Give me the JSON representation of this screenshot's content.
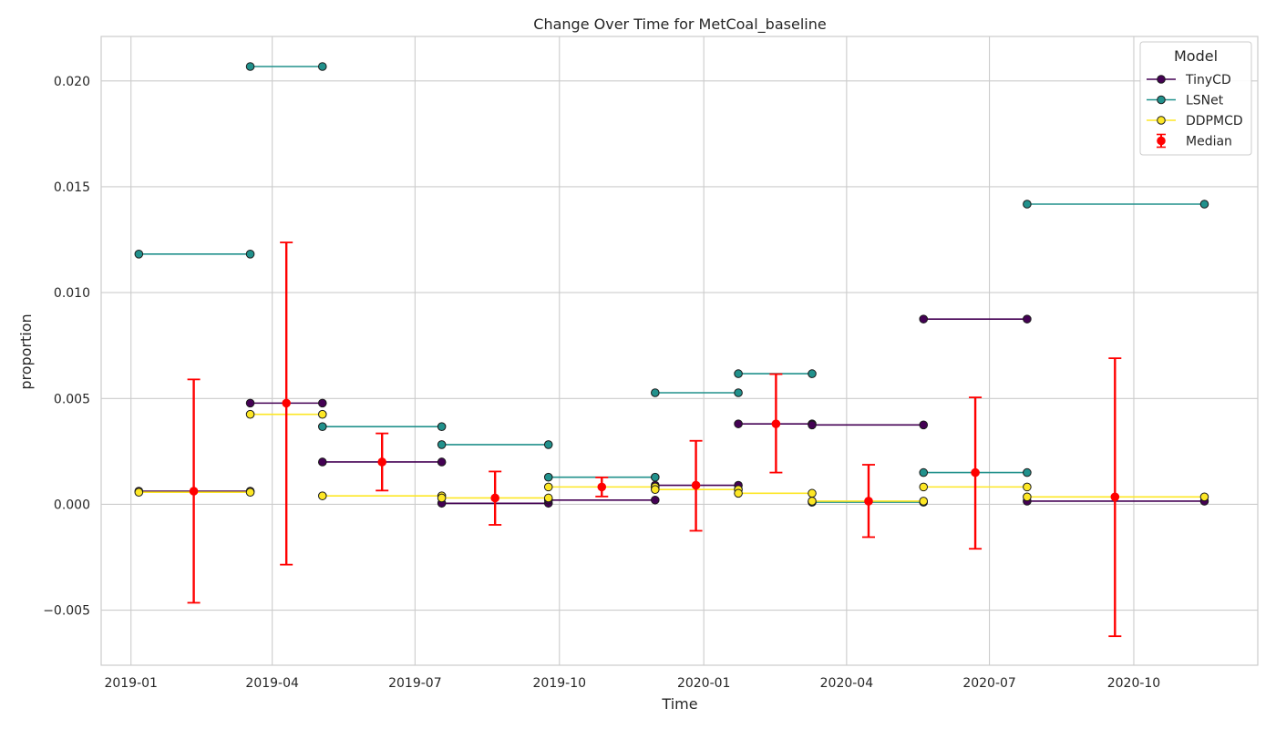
{
  "chart_data": {
    "type": "line",
    "title": "Change Over Time for MetCoal_baseline",
    "xlabel": "Time",
    "ylabel": "proportion",
    "x_axis": {
      "type": "date",
      "range": [
        "2018-12-13",
        "2020-12-19"
      ],
      "ticks": [
        "2019-01-01",
        "2019-04-01",
        "2019-07-01",
        "2019-10-01",
        "2020-01-01",
        "2020-04-01",
        "2020-07-01",
        "2020-10-01"
      ],
      "tick_labels": [
        "2019-01",
        "2019-04",
        "2019-07",
        "2019-10",
        "2020-01",
        "2020-04",
        "2020-07",
        "2020-10"
      ]
    },
    "y_axis": {
      "range": [
        -0.0076,
        0.0221
      ],
      "ticks": [
        -0.005,
        0.0,
        0.005,
        0.01,
        0.015,
        0.02
      ],
      "tick_labels": [
        "−0.005",
        "0.000",
        "0.005",
        "0.010",
        "0.015",
        "0.020"
      ]
    },
    "grid": true,
    "legend": {
      "title": "Model",
      "position": "top-right",
      "entries": [
        "TinyCD",
        "LSNet",
        "DDPMCD",
        "Median"
      ]
    },
    "series": [
      {
        "name": "TinyCD",
        "color": "#440154",
        "segments": [
          [
            [
              "2019-01-06",
              0.00062
            ],
            [
              "2019-03-18",
              0.00062
            ]
          ],
          [
            [
              "2019-03-18",
              0.00478
            ],
            [
              "2019-05-03",
              0.00478
            ]
          ],
          [
            [
              "2019-05-03",
              0.002
            ],
            [
              "2019-07-18",
              0.002
            ]
          ],
          [
            [
              "2019-07-18",
              5e-05
            ],
            [
              "2019-09-24",
              5e-05
            ]
          ],
          [
            [
              "2019-09-24",
              0.0002
            ],
            [
              "2019-12-01",
              0.0002
            ]
          ],
          [
            [
              "2019-12-01",
              0.0009
            ],
            [
              "2020-01-23",
              0.0009
            ]
          ],
          [
            [
              "2020-01-23",
              0.0038
            ],
            [
              "2020-03-10",
              0.0038
            ]
          ],
          [
            [
              "2020-03-10",
              0.00375
            ],
            [
              "2020-05-20",
              0.00375
            ]
          ],
          [
            [
              "2020-05-20",
              0.00875
            ],
            [
              "2020-07-25",
              0.00875
            ]
          ],
          [
            [
              "2020-07-25",
              0.00015
            ],
            [
              "2020-11-15",
              0.00015
            ]
          ]
        ]
      },
      {
        "name": "LSNet",
        "color": "#21918c",
        "segments": [
          [
            [
              "2019-01-06",
              0.01182
            ],
            [
              "2019-03-18",
              0.01182
            ]
          ],
          [
            [
              "2019-03-18",
              0.02068
            ],
            [
              "2019-05-03",
              0.02068
            ]
          ],
          [
            [
              "2019-05-03",
              0.00367
            ],
            [
              "2019-07-18",
              0.00367
            ]
          ],
          [
            [
              "2019-07-18",
              0.00282
            ],
            [
              "2019-09-24",
              0.00282
            ]
          ],
          [
            [
              "2019-09-24",
              0.00128
            ],
            [
              "2019-12-01",
              0.00128
            ]
          ],
          [
            [
              "2019-12-01",
              0.00527
            ],
            [
              "2020-01-23",
              0.00527
            ]
          ],
          [
            [
              "2020-01-23",
              0.00617
            ],
            [
              "2020-03-10",
              0.00617
            ]
          ],
          [
            [
              "2020-03-10",
              0.0001
            ],
            [
              "2020-05-20",
              0.0001
            ]
          ],
          [
            [
              "2020-05-20",
              0.0015
            ],
            [
              "2020-07-25",
              0.0015
            ]
          ],
          [
            [
              "2020-07-25",
              0.01418
            ],
            [
              "2020-11-15",
              0.01418
            ]
          ]
        ]
      },
      {
        "name": "DDPMCD",
        "color": "#fde725",
        "segments": [
          [
            [
              "2019-01-06",
              0.00057
            ],
            [
              "2019-03-18",
              0.00057
            ]
          ],
          [
            [
              "2019-03-18",
              0.00425
            ],
            [
              "2019-05-03",
              0.00425
            ]
          ],
          [
            [
              "2019-05-03",
              0.0004
            ],
            [
              "2019-07-18",
              0.0004
            ]
          ],
          [
            [
              "2019-07-18",
              0.0003
            ],
            [
              "2019-09-24",
              0.0003
            ]
          ],
          [
            [
              "2019-09-24",
              0.00082
            ],
            [
              "2019-12-01",
              0.00082
            ]
          ],
          [
            [
              "2019-12-01",
              0.0007
            ],
            [
              "2020-01-23",
              0.0007
            ]
          ],
          [
            [
              "2020-01-23",
              0.00052
            ],
            [
              "2020-03-10",
              0.00052
            ]
          ],
          [
            [
              "2020-03-10",
              0.00015
            ],
            [
              "2020-05-20",
              0.00015
            ]
          ],
          [
            [
              "2020-05-20",
              0.00082
            ],
            [
              "2020-07-25",
              0.00082
            ]
          ],
          [
            [
              "2020-07-25",
              0.00035
            ],
            [
              "2020-11-15",
              0.00035
            ]
          ]
        ]
      }
    ],
    "median": {
      "name": "Median",
      "color": "#ff0000",
      "points": [
        {
          "x": "2019-02-10",
          "y": 0.00062,
          "low": -0.00465,
          "high": 0.0059
        },
        {
          "x": "2019-04-10",
          "y": 0.00478,
          "low": -0.00285,
          "high": 0.01237
        },
        {
          "x": "2019-06-10",
          "y": 0.002,
          "low": 0.00065,
          "high": 0.00335
        },
        {
          "x": "2019-08-21",
          "y": 0.0003,
          "low": -0.00097,
          "high": 0.00155
        },
        {
          "x": "2019-10-28",
          "y": 0.00082,
          "low": 0.00037,
          "high": 0.00127
        },
        {
          "x": "2019-12-27",
          "y": 0.0009,
          "low": -0.00125,
          "high": 0.003
        },
        {
          "x": "2020-02-16",
          "y": 0.0038,
          "low": 0.0015,
          "high": 0.00615
        },
        {
          "x": "2020-04-15",
          "y": 0.00015,
          "low": -0.00155,
          "high": 0.00187
        },
        {
          "x": "2020-06-22",
          "y": 0.0015,
          "low": -0.0021,
          "high": 0.00505
        },
        {
          "x": "2020-09-19",
          "y": 0.00035,
          "low": -0.00623,
          "high": 0.0069
        }
      ]
    }
  }
}
